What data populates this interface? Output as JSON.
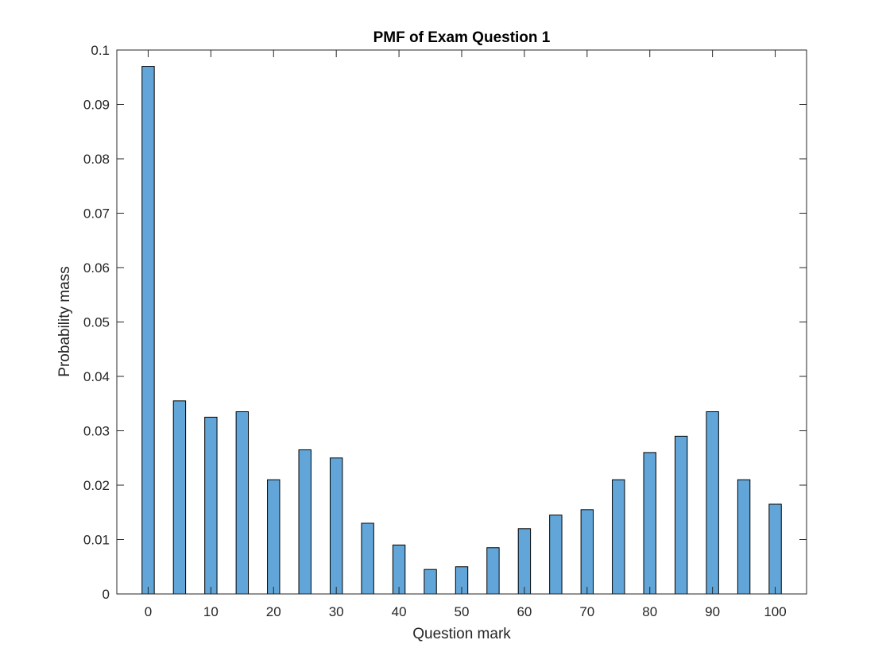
{
  "chart_data": {
    "type": "bar",
    "title": "PMF of Exam Question 1",
    "xlabel": "Question mark",
    "ylabel": "Probability mass",
    "x": [
      0,
      5,
      10,
      15,
      20,
      25,
      30,
      35,
      40,
      45,
      50,
      55,
      60,
      65,
      70,
      75,
      80,
      85,
      90,
      95,
      100
    ],
    "values": [
      0.097,
      0.0355,
      0.0325,
      0.0335,
      0.021,
      0.0265,
      0.025,
      0.013,
      0.009,
      0.0045,
      0.005,
      0.0085,
      0.012,
      0.0145,
      0.0155,
      0.021,
      0.026,
      0.029,
      0.0335,
      0.021,
      0.0165
    ],
    "xlim": [
      -5,
      105
    ],
    "ylim": [
      0,
      0.1
    ],
    "xticks": [
      0,
      10,
      20,
      30,
      40,
      50,
      60,
      70,
      80,
      90,
      100
    ],
    "xtick_labels": [
      "0",
      "10",
      "20",
      "30",
      "40",
      "50",
      "60",
      "70",
      "80",
      "90",
      "100"
    ],
    "yticks": [
      0,
      0.01,
      0.02,
      0.03,
      0.04,
      0.05,
      0.06,
      0.07,
      0.08,
      0.09,
      0.1
    ],
    "ytick_labels": [
      "0",
      "0.01",
      "0.02",
      "0.03",
      "0.04",
      "0.05",
      "0.06",
      "0.07",
      "0.08",
      "0.09",
      "0.1"
    ],
    "grid": false,
    "legend": "none",
    "bar_color": "#62a6d9",
    "bar_edge_color": "#000000"
  }
}
